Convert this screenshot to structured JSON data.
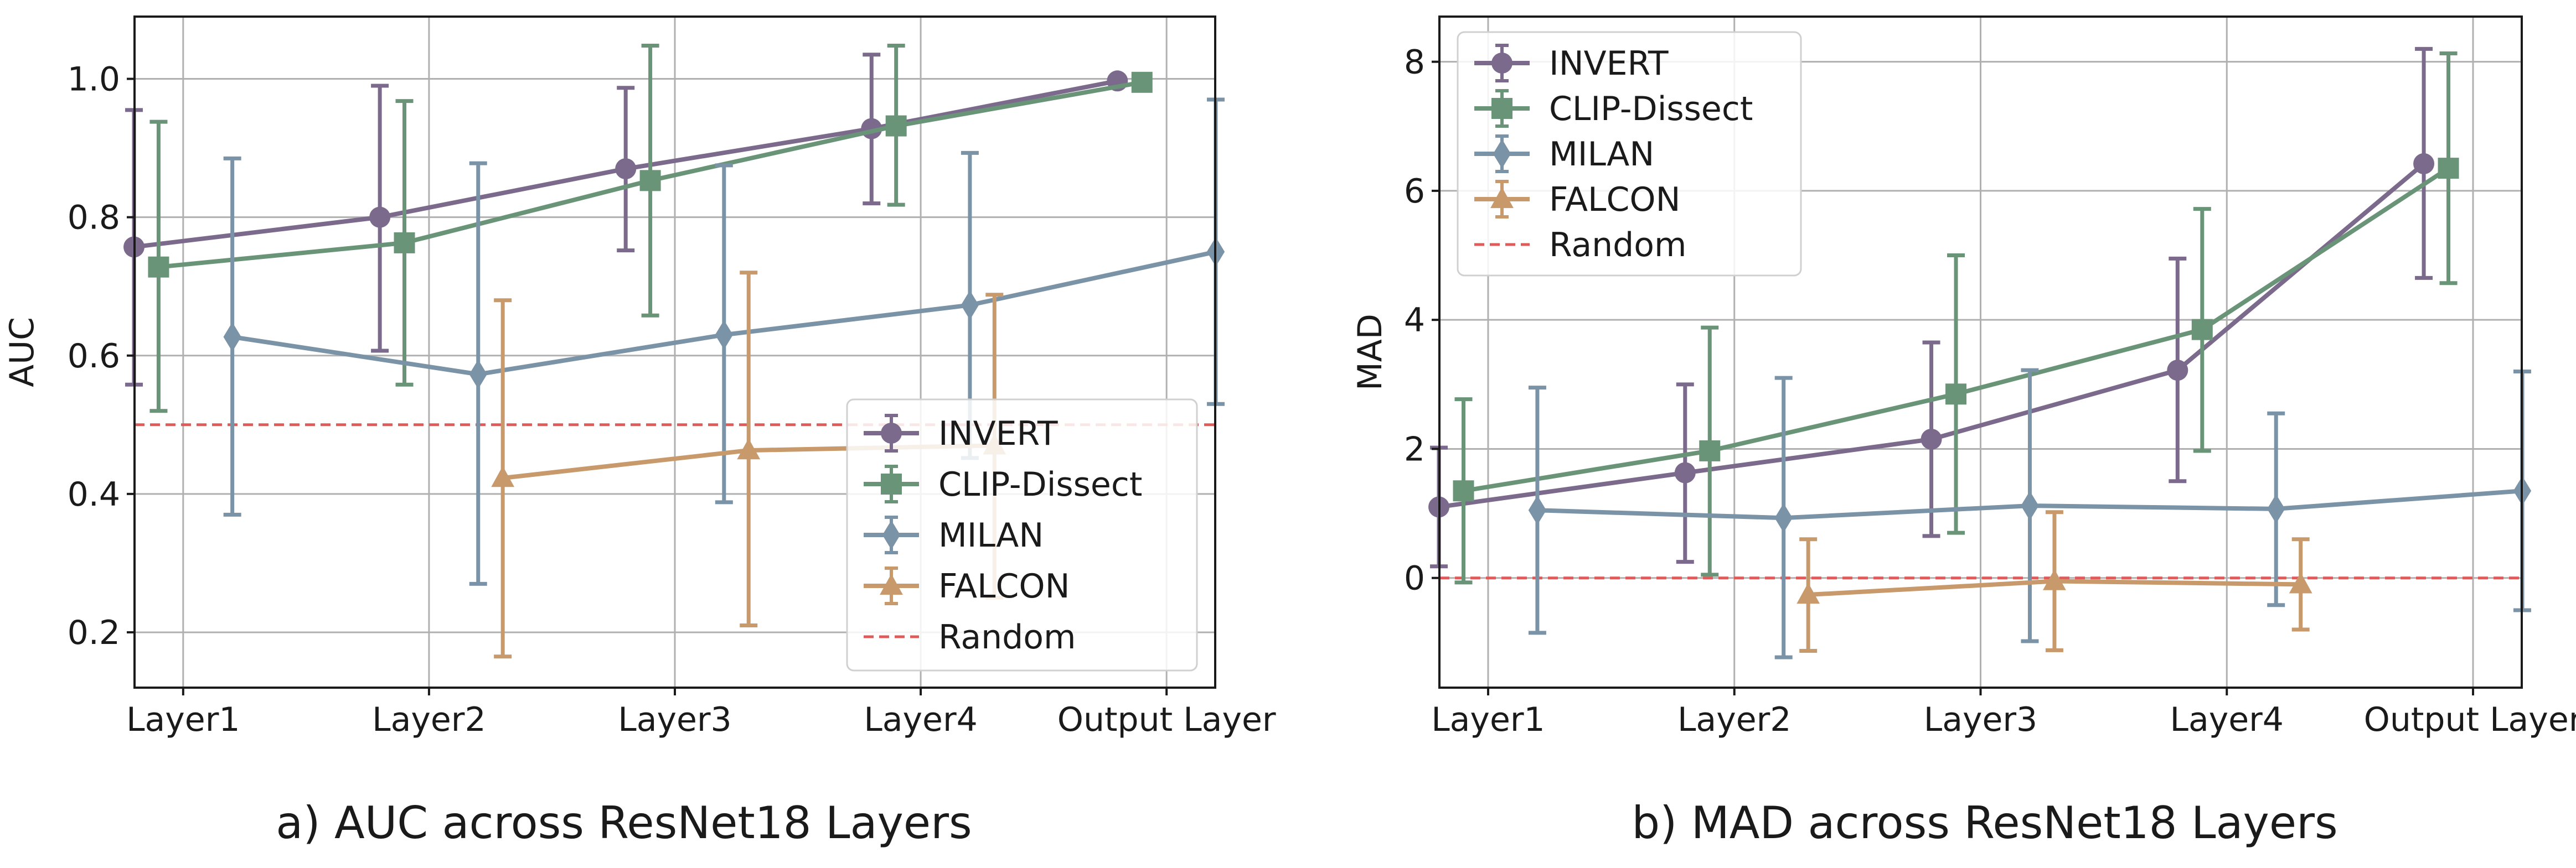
{
  "chart_data": [
    {
      "type": "line",
      "caption": "a) AUC across ResNet18 Layers",
      "xlabel": "",
      "ylabel": "AUC",
      "categories": [
        "Layer1",
        "Layer2",
        "Layer3",
        "Layer4",
        "Output Layer"
      ],
      "ylim": [
        0.12,
        1.09
      ],
      "yticks": [
        0.2,
        0.4,
        0.6,
        0.8,
        1.0
      ],
      "ytick_labels": [
        "0.2",
        "0.4",
        "0.6",
        "0.8",
        "1.0"
      ],
      "grid": true,
      "legend_position": "lower-right",
      "series": [
        {
          "name": "INVERT",
          "color": "#7b6a8c",
          "marker": "circle",
          "offset": -0.2,
          "values": [
            0.757,
            0.8,
            0.87,
            0.928,
            0.997
          ],
          "err_low": [
            0.558,
            0.607,
            0.752,
            0.82,
            0.997
          ],
          "err_high": [
            0.955,
            0.99,
            0.987,
            1.035,
            0.997
          ]
        },
        {
          "name": "CLIP-Dissect",
          "color": "#6a9478",
          "marker": "square",
          "offset": -0.1,
          "values": [
            0.728,
            0.763,
            0.853,
            0.932,
            0.995
          ],
          "err_low": [
            0.52,
            0.558,
            0.658,
            0.818,
            0.995
          ],
          "err_high": [
            0.938,
            0.968,
            1.048,
            1.048,
            0.995
          ]
        },
        {
          "name": "MILAN",
          "color": "#7b93a6",
          "marker": "diamond",
          "offset": 0.2,
          "values": [
            0.627,
            0.573,
            0.63,
            0.673,
            0.75
          ],
          "err_low": [
            0.37,
            0.27,
            0.388,
            0.452,
            0.53
          ],
          "err_high": [
            0.885,
            0.878,
            0.875,
            0.893,
            0.97
          ]
        },
        {
          "name": "FALCON",
          "color": "#c89a6b",
          "marker": "triangle",
          "offset": 0.3,
          "values": [
            null,
            0.423,
            0.463,
            0.47,
            null
          ],
          "err_low": [
            null,
            0.165,
            0.21,
            0.25,
            null
          ],
          "err_high": [
            null,
            0.68,
            0.72,
            0.688,
            null
          ]
        }
      ],
      "reference_line": {
        "name": "Random",
        "value": 0.5,
        "color": "#e05a5a",
        "style": "dashed"
      }
    },
    {
      "type": "line",
      "caption": "b) MAD across ResNet18 Layers",
      "xlabel": "",
      "ylabel": "MAD",
      "categories": [
        "Layer1",
        "Layer2",
        "Layer3",
        "Layer4",
        "Output Layer"
      ],
      "ylim": [
        -1.7,
        8.7
      ],
      "yticks": [
        0,
        2,
        4,
        6,
        8
      ],
      "ytick_labels": [
        "0",
        "2",
        "4",
        "6",
        "8"
      ],
      "grid": true,
      "legend_position": "upper-left",
      "series": [
        {
          "name": "INVERT",
          "color": "#7b6a8c",
          "marker": "circle",
          "offset": -0.2,
          "values": [
            1.1,
            1.63,
            2.15,
            3.22,
            6.42
          ],
          "err_low": [
            0.18,
            0.25,
            0.65,
            1.5,
            4.65
          ],
          "err_high": [
            2.02,
            3.0,
            3.65,
            4.95,
            8.2
          ]
        },
        {
          "name": "CLIP-Dissect",
          "color": "#6a9478",
          "marker": "square",
          "offset": -0.1,
          "values": [
            1.35,
            1.97,
            2.85,
            3.85,
            6.35
          ],
          "err_low": [
            -0.07,
            0.05,
            0.7,
            1.97,
            4.57
          ],
          "err_high": [
            2.77,
            3.88,
            5.0,
            5.72,
            8.13
          ]
        },
        {
          "name": "MILAN",
          "color": "#7b93a6",
          "marker": "diamond",
          "offset": 0.2,
          "values": [
            1.05,
            0.93,
            1.12,
            1.07,
            1.35
          ],
          "err_low": [
            -0.85,
            -1.23,
            -0.98,
            -0.42,
            -0.5
          ],
          "err_high": [
            2.95,
            3.1,
            3.22,
            2.55,
            3.2
          ]
        },
        {
          "name": "FALCON",
          "color": "#c89a6b",
          "marker": "triangle",
          "offset": 0.3,
          "values": [
            null,
            -0.26,
            -0.05,
            -0.1,
            null
          ],
          "err_low": [
            null,
            -1.13,
            -1.12,
            -0.8,
            null
          ],
          "err_high": [
            null,
            0.6,
            1.02,
            0.6,
            null
          ]
        }
      ],
      "reference_line": {
        "name": "Random",
        "value": 0,
        "color": "#e05a5a",
        "style": "dashed"
      }
    }
  ]
}
